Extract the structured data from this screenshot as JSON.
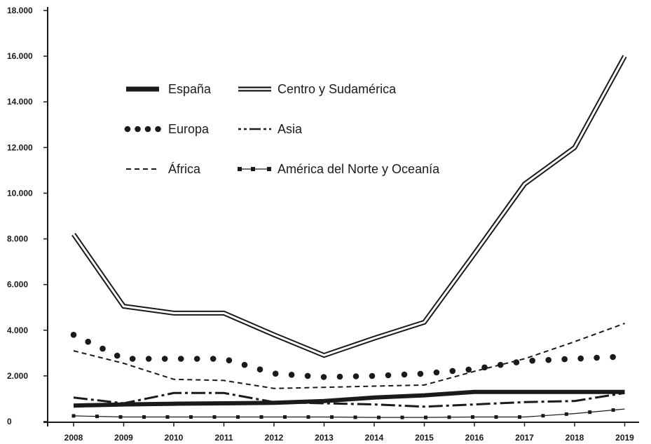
{
  "chart_data": {
    "type": "line",
    "title": "",
    "xlabel": "",
    "ylabel": "",
    "ylim": [
      0,
      18000
    ],
    "yticks": [
      0,
      2000,
      4000,
      6000,
      8000,
      10000,
      12000,
      14000,
      16000,
      18000
    ],
    "ytick_labels": [
      "0",
      "2.000",
      "4.000",
      "6.000",
      "8.000",
      "10.000",
      "12.000",
      "14.000",
      "16.000",
      "18.000"
    ],
    "categories": [
      "2008",
      "2009",
      "2010",
      "2011",
      "2012",
      "2013",
      "2014",
      "2015",
      "2016",
      "2017",
      "2018",
      "2019"
    ],
    "grid": false,
    "legend_position": "top-left",
    "series": [
      {
        "name": "España",
        "style": "thick",
        "color": "#1a1a1a",
        "values": [
          700,
          750,
          780,
          800,
          820,
          900,
          1050,
          1150,
          1300,
          1300,
          1300,
          1300
        ]
      },
      {
        "name": "Centro y Sudamérica",
        "style": "double",
        "color": "#1a1a1a",
        "values": [
          8200,
          5050,
          4750,
          4750,
          3800,
          2900,
          3650,
          4350,
          7350,
          10400,
          12000,
          16000
        ]
      },
      {
        "name": "Europa",
        "style": "dots",
        "color": "#1a1a1a",
        "values": [
          3800,
          2750,
          2750,
          2750,
          2100,
          1950,
          2000,
          2100,
          2300,
          2650,
          2750,
          2850
        ]
      },
      {
        "name": "Asia",
        "style": "dashdot",
        "color": "#1a1a1a",
        "values": [
          1050,
          800,
          1250,
          1250,
          850,
          800,
          750,
          650,
          750,
          850,
          900,
          1250
        ]
      },
      {
        "name": "África",
        "style": "dashed",
        "color": "#1a1a1a",
        "values": [
          3100,
          2550,
          1850,
          1800,
          1450,
          1500,
          1550,
          1600,
          2200,
          2750,
          3500,
          4300
        ]
      },
      {
        "name": "América del Norte y Oceanía",
        "style": "square-markers",
        "color": "#1a1a1a",
        "values": [
          250,
          200,
          200,
          200,
          200,
          200,
          180,
          180,
          200,
          200,
          350,
          550
        ]
      }
    ]
  }
}
